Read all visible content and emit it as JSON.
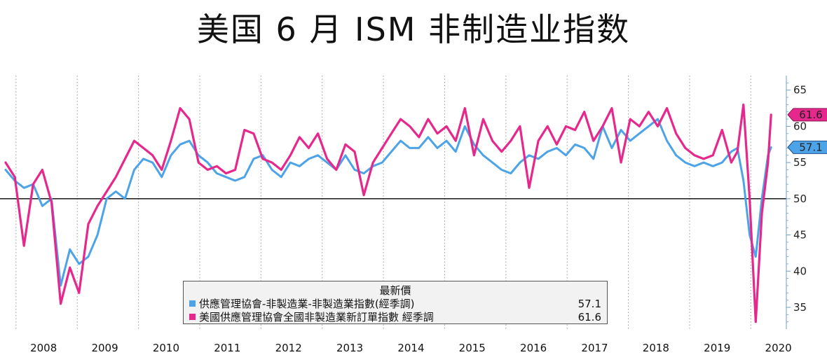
{
  "title": "美国 6 月 ISM 非制造业指数",
  "legend": {
    "title": "最新價",
    "items": [
      {
        "name": "供應管理協會-非製造業-非製造業指數(經季調)",
        "value": "57.1",
        "color": "#4da3e8"
      },
      {
        "name": "美國供應管理協會全國非製造業新訂單指數 經季調",
        "value": "61.6",
        "color": "#e6278c"
      }
    ]
  },
  "chart_data": {
    "type": "line",
    "x_axis": {
      "years": [
        "2008",
        "2009",
        "2010",
        "2011",
        "2012",
        "2013",
        "2014",
        "2015",
        "2016",
        "2017",
        "2018",
        "2019",
        "2020"
      ]
    },
    "y_axis": {
      "ticks": [
        35,
        40,
        45,
        50,
        55,
        60,
        65
      ],
      "min": 32,
      "max": 67,
      "side": "right",
      "reference_line": 50
    },
    "grid": "vertical dotted lines at year boundaries",
    "series": [
      {
        "name": "供應管理協會-非製造業-非製造業指數(經季調)",
        "color": "#4da3e8",
        "last_value": 57.1,
        "x": [
          2008.0,
          2008.15,
          2008.3,
          2008.45,
          2008.6,
          2008.75,
          2008.9,
          2009.05,
          2009.2,
          2009.35,
          2009.5,
          2009.65,
          2009.8,
          2009.95,
          2010.1,
          2010.25,
          2010.4,
          2010.55,
          2010.7,
          2010.85,
          2011.0,
          2011.15,
          2011.3,
          2011.45,
          2011.6,
          2011.75,
          2011.9,
          2012.05,
          2012.2,
          2012.35,
          2012.5,
          2012.65,
          2012.8,
          2012.95,
          2013.1,
          2013.25,
          2013.4,
          2013.55,
          2013.7,
          2013.85,
          2014.0,
          2014.15,
          2014.3,
          2014.45,
          2014.6,
          2014.75,
          2014.9,
          2015.05,
          2015.2,
          2015.35,
          2015.5,
          2015.65,
          2015.8,
          2015.95,
          2016.1,
          2016.25,
          2016.4,
          2016.55,
          2016.7,
          2016.85,
          2017.0,
          2017.15,
          2017.3,
          2017.45,
          2017.6,
          2017.75,
          2017.9,
          2018.05,
          2018.2,
          2018.35,
          2018.5,
          2018.65,
          2018.8,
          2018.95,
          2019.1,
          2019.25,
          2019.4,
          2019.55,
          2019.7,
          2019.85,
          2019.95,
          2020.05,
          2020.15,
          2020.25,
          2020.35,
          2020.45,
          2020.5
        ],
        "values": [
          54,
          52.5,
          51.5,
          52,
          49,
          50,
          38,
          43,
          41,
          42,
          45,
          50,
          51,
          50,
          54,
          55.5,
          55,
          53,
          56,
          57.5,
          58,
          56,
          55,
          53.5,
          53,
          52.5,
          53,
          55.5,
          56,
          54,
          53,
          55,
          54.5,
          55.5,
          56,
          55,
          54,
          56,
          54,
          53.5,
          54.5,
          55,
          56.5,
          58,
          57,
          57,
          58.5,
          57,
          58,
          56.5,
          60,
          57.5,
          56,
          55,
          54,
          53.5,
          55,
          56,
          55.5,
          56.5,
          57,
          56,
          57.5,
          57,
          55.5,
          60,
          57,
          59.5,
          58,
          59,
          60,
          61,
          58,
          56,
          55,
          54.5,
          55,
          54.5,
          55,
          56.5,
          57,
          52.5,
          45,
          42,
          50,
          56,
          57.1
        ]
      },
      {
        "name": "美國供應管理協會全國非製造業新訂單指數 經季調",
        "color": "#e6278c",
        "last_value": 61.6,
        "x": [
          2008.0,
          2008.15,
          2008.3,
          2008.45,
          2008.6,
          2008.75,
          2008.9,
          2009.05,
          2009.2,
          2009.35,
          2009.5,
          2009.65,
          2009.8,
          2009.95,
          2010.1,
          2010.25,
          2010.4,
          2010.55,
          2010.7,
          2010.85,
          2011.0,
          2011.15,
          2011.3,
          2011.45,
          2011.6,
          2011.75,
          2011.9,
          2012.05,
          2012.2,
          2012.35,
          2012.5,
          2012.65,
          2012.8,
          2012.95,
          2013.1,
          2013.25,
          2013.4,
          2013.55,
          2013.7,
          2013.85,
          2014.0,
          2014.15,
          2014.3,
          2014.45,
          2014.6,
          2014.75,
          2014.9,
          2015.05,
          2015.2,
          2015.35,
          2015.5,
          2015.65,
          2015.8,
          2015.95,
          2016.1,
          2016.25,
          2016.4,
          2016.55,
          2016.7,
          2016.85,
          2017.0,
          2017.15,
          2017.3,
          2017.45,
          2017.6,
          2017.75,
          2017.9,
          2018.05,
          2018.2,
          2018.35,
          2018.5,
          2018.65,
          2018.8,
          2018.95,
          2019.1,
          2019.25,
          2019.4,
          2019.55,
          2019.7,
          2019.85,
          2019.95,
          2020.05,
          2020.15,
          2020.25,
          2020.35,
          2020.45,
          2020.5
        ],
        "values": [
          55,
          53,
          43.5,
          52,
          54,
          49.5,
          35.5,
          40.5,
          37,
          46.5,
          49,
          51,
          53,
          55.5,
          58,
          57,
          56,
          54,
          58,
          62.5,
          61,
          55,
          54,
          54.5,
          53.5,
          54,
          59.5,
          59,
          55.5,
          55,
          54,
          56,
          58.5,
          57,
          59,
          55.5,
          54,
          57.5,
          56.5,
          50.5,
          55,
          57,
          59,
          61,
          60,
          58.5,
          61,
          59,
          60,
          58,
          62.5,
          56,
          61,
          58,
          56.5,
          58,
          60,
          51.5,
          58,
          60,
          57.5,
          60,
          59.5,
          62,
          58,
          60,
          62.5,
          55,
          61,
          60,
          62,
          60,
          62.5,
          59,
          57,
          56,
          55.5,
          56,
          59.5,
          55,
          56.5,
          63,
          50,
          33,
          48,
          55,
          61.6
        ]
      }
    ]
  }
}
